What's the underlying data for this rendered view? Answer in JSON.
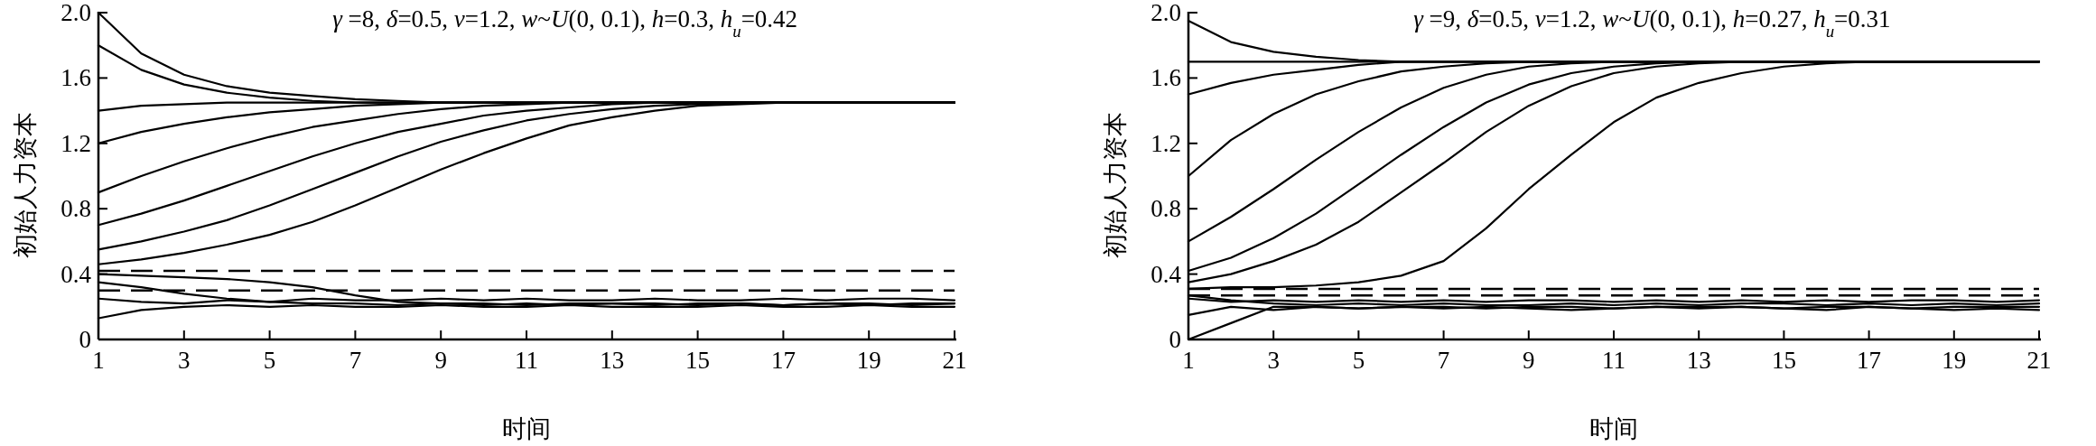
{
  "chart_data": [
    {
      "type": "line",
      "title": "*γ* =8, *δ*=0.5, *v*=1.2, *w*~*U*(0, 0.1), *h*=0.3, *h*$_{u}$=0.42",
      "xlabel": "时间",
      "ylabel": "初始人力资本",
      "x": [
        1,
        2,
        3,
        4,
        5,
        6,
        7,
        8,
        9,
        10,
        11,
        12,
        13,
        14,
        15,
        16,
        17,
        18,
        19,
        20,
        21
      ],
      "xlim": [
        1,
        21
      ],
      "xticks": [
        1,
        3,
        5,
        7,
        9,
        11,
        13,
        15,
        17,
        19,
        21
      ],
      "ylim": [
        0,
        2
      ],
      "yticks": [
        0,
        0.4,
        0.8,
        1.2,
        1.6,
        {
          "value": 2,
          "label": "2.0"
        }
      ],
      "line_style": "solid",
      "series": [
        {
          "color": "#000000",
          "values": [
            2.0,
            1.75,
            1.62,
            1.55,
            1.51,
            1.49,
            1.47,
            1.46,
            1.45,
            1.45,
            1.45,
            1.45,
            1.45,
            1.45,
            1.45,
            1.45,
            1.45,
            1.45,
            1.45,
            1.45,
            1.45
          ]
        },
        {
          "color": "#000000",
          "values": [
            1.8,
            1.65,
            1.56,
            1.51,
            1.48,
            1.46,
            1.45,
            1.45,
            1.45,
            1.45,
            1.45,
            1.45,
            1.45,
            1.45,
            1.45,
            1.45,
            1.45,
            1.45,
            1.45,
            1.45,
            1.45
          ]
        },
        {
          "color": "#000000",
          "values": [
            1.4,
            1.43,
            1.44,
            1.45,
            1.45,
            1.45,
            1.45,
            1.45,
            1.45,
            1.45,
            1.45,
            1.45,
            1.45,
            1.45,
            1.45,
            1.45,
            1.45,
            1.45,
            1.45,
            1.45,
            1.45
          ]
        },
        {
          "color": "#000000",
          "values": [
            1.2,
            1.27,
            1.32,
            1.36,
            1.39,
            1.41,
            1.43,
            1.44,
            1.45,
            1.45,
            1.45,
            1.45,
            1.45,
            1.45,
            1.45,
            1.45,
            1.45,
            1.45,
            1.45,
            1.45,
            1.45
          ]
        },
        {
          "color": "#000000",
          "values": [
            0.9,
            1.0,
            1.09,
            1.17,
            1.24,
            1.3,
            1.34,
            1.38,
            1.41,
            1.43,
            1.44,
            1.45,
            1.45,
            1.45,
            1.45,
            1.45,
            1.45,
            1.45,
            1.45,
            1.45,
            1.45
          ]
        },
        {
          "color": "#000000",
          "values": [
            0.7,
            0.77,
            0.85,
            0.94,
            1.03,
            1.12,
            1.2,
            1.27,
            1.32,
            1.37,
            1.4,
            1.42,
            1.44,
            1.45,
            1.45,
            1.45,
            1.45,
            1.45,
            1.45,
            1.45,
            1.45
          ]
        },
        {
          "color": "#000000",
          "values": [
            0.55,
            0.6,
            0.66,
            0.73,
            0.82,
            0.92,
            1.02,
            1.12,
            1.21,
            1.28,
            1.34,
            1.38,
            1.41,
            1.43,
            1.44,
            1.45,
            1.45,
            1.45,
            1.45,
            1.45,
            1.45
          ]
        },
        {
          "color": "#000000",
          "values": [
            0.46,
            0.49,
            0.53,
            0.58,
            0.64,
            0.72,
            0.82,
            0.93,
            1.04,
            1.14,
            1.23,
            1.31,
            1.36,
            1.4,
            1.43,
            1.44,
            1.45,
            1.45,
            1.45,
            1.45,
            1.45
          ]
        },
        {
          "color": "#000000",
          "values": [
            0.4,
            0.39,
            0.38,
            0.37,
            0.35,
            0.32,
            0.27,
            0.23,
            0.22,
            0.22,
            0.21,
            0.22,
            0.22,
            0.21,
            0.22,
            0.22,
            0.21,
            0.22,
            0.22,
            0.21,
            0.22
          ]
        },
        {
          "color": "#000000",
          "values": [
            0.35,
            0.32,
            0.28,
            0.25,
            0.23,
            0.22,
            0.22,
            0.21,
            0.22,
            0.21,
            0.22,
            0.21,
            0.22,
            0.22,
            0.21,
            0.22,
            0.21,
            0.22,
            0.21,
            0.22,
            0.22
          ]
        },
        {
          "color": "#000000",
          "values": [
            0.13,
            0.18,
            0.2,
            0.21,
            0.2,
            0.21,
            0.2,
            0.2,
            0.21,
            0.2,
            0.2,
            0.21,
            0.2,
            0.2,
            0.2,
            0.21,
            0.2,
            0.2,
            0.21,
            0.2,
            0.2
          ]
        },
        {
          "color": "#000000",
          "values": [
            0.25,
            0.23,
            0.22,
            0.24,
            0.23,
            0.25,
            0.24,
            0.24,
            0.25,
            0.24,
            0.25,
            0.24,
            0.24,
            0.25,
            0.24,
            0.24,
            0.25,
            0.24,
            0.25,
            0.25,
            0.24
          ]
        }
      ],
      "ref_lines": [
        {
          "axis": "y",
          "value": 0.3,
          "color": "#000000",
          "line_style": "dashed"
        },
        {
          "axis": "y",
          "value": 0.42,
          "color": "#000000",
          "line_style": "dashed"
        }
      ]
    },
    {
      "type": "line",
      "title": "*γ* =9, *δ*=0.5, *v*=1.2, *w*~*U*(0, 0.1), *h*=0.27, *h*$_{u}$=0.31",
      "xlabel": "时间",
      "ylabel": "初始人力资本",
      "x": [
        1,
        2,
        3,
        4,
        5,
        6,
        7,
        8,
        9,
        10,
        11,
        12,
        13,
        14,
        15,
        16,
        17,
        18,
        19,
        20,
        21
      ],
      "xlim": [
        1,
        21
      ],
      "xticks": [
        1,
        3,
        5,
        7,
        9,
        11,
        13,
        15,
        17,
        19,
        21
      ],
      "ylim": [
        0,
        2
      ],
      "yticks": [
        0,
        0.4,
        0.8,
        1.2,
        1.6,
        {
          "value": 2,
          "label": "2.0"
        }
      ],
      "line_style": "solid",
      "series": [
        {
          "color": "#000000",
          "values": [
            1.95,
            1.82,
            1.76,
            1.73,
            1.71,
            1.7,
            1.7,
            1.7,
            1.7,
            1.7,
            1.7,
            1.7,
            1.7,
            1.7,
            1.7,
            1.7,
            1.7,
            1.7,
            1.7,
            1.7,
            1.7
          ]
        },
        {
          "color": "#000000",
          "values": [
            1.7,
            1.7,
            1.7,
            1.7,
            1.7,
            1.7,
            1.7,
            1.7,
            1.7,
            1.7,
            1.7,
            1.7,
            1.7,
            1.7,
            1.7,
            1.7,
            1.7,
            1.7,
            1.7,
            1.7,
            1.7
          ]
        },
        {
          "color": "#000000",
          "values": [
            1.5,
            1.57,
            1.62,
            1.65,
            1.68,
            1.7,
            1.7,
            1.7,
            1.7,
            1.7,
            1.7,
            1.7,
            1.7,
            1.7,
            1.7,
            1.7,
            1.7,
            1.7,
            1.7,
            1.7,
            1.7
          ]
        },
        {
          "color": "#000000",
          "values": [
            1.0,
            1.22,
            1.38,
            1.5,
            1.58,
            1.64,
            1.67,
            1.69,
            1.7,
            1.7,
            1.7,
            1.7,
            1.7,
            1.7,
            1.7,
            1.7,
            1.7,
            1.7,
            1.7,
            1.7,
            1.7
          ]
        },
        {
          "color": "#000000",
          "values": [
            0.6,
            0.75,
            0.92,
            1.1,
            1.27,
            1.42,
            1.54,
            1.62,
            1.67,
            1.69,
            1.7,
            1.7,
            1.7,
            1.7,
            1.7,
            1.7,
            1.7,
            1.7,
            1.7,
            1.7,
            1.7
          ]
        },
        {
          "color": "#000000",
          "values": [
            0.42,
            0.5,
            0.62,
            0.77,
            0.95,
            1.13,
            1.3,
            1.45,
            1.56,
            1.63,
            1.67,
            1.69,
            1.7,
            1.7,
            1.7,
            1.7,
            1.7,
            1.7,
            1.7,
            1.7,
            1.7
          ]
        },
        {
          "color": "#000000",
          "values": [
            0.35,
            0.4,
            0.48,
            0.58,
            0.72,
            0.9,
            1.08,
            1.27,
            1.43,
            1.55,
            1.63,
            1.67,
            1.69,
            1.7,
            1.7,
            1.7,
            1.7,
            1.7,
            1.7,
            1.7,
            1.7
          ]
        },
        {
          "color": "#000000",
          "values": [
            0.31,
            0.32,
            0.32,
            0.33,
            0.35,
            0.39,
            0.48,
            0.68,
            0.92,
            1.13,
            1.33,
            1.48,
            1.57,
            1.63,
            1.67,
            1.69,
            1.7,
            1.7,
            1.7,
            1.7,
            1.7
          ]
        },
        {
          "color": "#000000",
          "values": [
            0,
            0.1,
            0.2,
            0.2,
            0.19,
            0.2,
            0.2,
            0.19,
            0.2,
            0.2,
            0.19,
            0.2,
            0.2,
            0.2,
            0.19,
            0.2,
            0.2,
            0.19,
            0.2,
            0.2,
            0.2
          ]
        },
        {
          "color": "#000000",
          "values": [
            0.27,
            0.24,
            0.22,
            0.21,
            0.22,
            0.21,
            0.22,
            0.21,
            0.21,
            0.22,
            0.21,
            0.22,
            0.21,
            0.22,
            0.22,
            0.21,
            0.22,
            0.21,
            0.22,
            0.21,
            0.22
          ]
        },
        {
          "color": "#000000",
          "values": [
            0.15,
            0.2,
            0.18,
            0.2,
            0.19,
            0.2,
            0.19,
            0.2,
            0.19,
            0.18,
            0.19,
            0.2,
            0.19,
            0.2,
            0.19,
            0.18,
            0.2,
            0.19,
            0.18,
            0.19,
            0.18
          ]
        },
        {
          "color": "#000000",
          "values": [
            0.25,
            0.23,
            0.24,
            0.23,
            0.24,
            0.23,
            0.24,
            0.23,
            0.24,
            0.24,
            0.23,
            0.24,
            0.23,
            0.24,
            0.23,
            0.24,
            0.23,
            0.24,
            0.24,
            0.23,
            0.24
          ]
        }
      ],
      "ref_lines": [
        {
          "axis": "y",
          "value": 0.27,
          "color": "#000000",
          "line_style": "dashed"
        },
        {
          "axis": "y",
          "value": 0.31,
          "color": "#000000",
          "line_style": "dashed"
        }
      ]
    }
  ]
}
